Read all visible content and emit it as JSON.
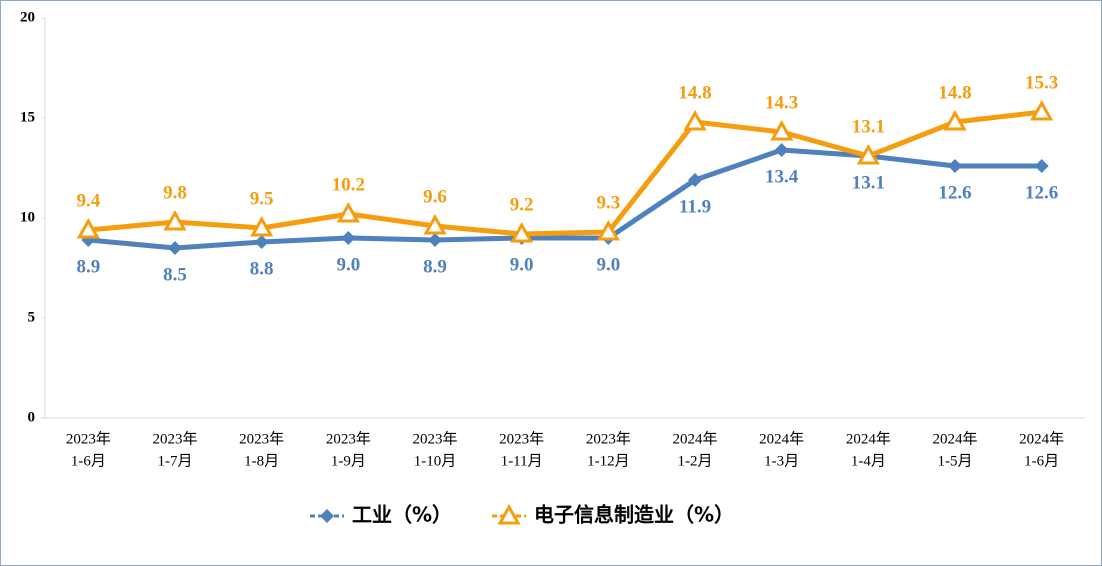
{
  "chart_data": {
    "type": "line",
    "categories": [
      [
        "2023年",
        "1-6月"
      ],
      [
        "2023年",
        "1-7月"
      ],
      [
        "2023年",
        "1-8月"
      ],
      [
        "2023年",
        "1-9月"
      ],
      [
        "2023年",
        "1-10月"
      ],
      [
        "2023年",
        "1-11月"
      ],
      [
        "2023年",
        "1-12月"
      ],
      [
        "2024年",
        "1-2月"
      ],
      [
        "2024年",
        "1-3月"
      ],
      [
        "2024年",
        "1-4月"
      ],
      [
        "2024年",
        "1-5月"
      ],
      [
        "2024年",
        "1-6月"
      ]
    ],
    "series": [
      {
        "name": "工业（%）",
        "color": "#4f81bd",
        "marker": "diamond",
        "label_position": "below",
        "values": [
          8.9,
          8.5,
          8.8,
          9.0,
          8.9,
          9.0,
          9.0,
          11.9,
          13.4,
          13.1,
          12.6,
          12.6
        ],
        "value_labels": [
          "8.9",
          "8.5",
          "8.8",
          "9.0",
          "8.9",
          "9.0",
          "9.0",
          "11.9",
          "13.4",
          "13.1",
          "12.6",
          "12.6"
        ]
      },
      {
        "name": "电子信息制造业（%）",
        "color": "#f59d0e",
        "marker": "triangle",
        "label_position": "above",
        "values": [
          9.4,
          9.8,
          9.5,
          10.2,
          9.6,
          9.2,
          9.3,
          14.8,
          14.3,
          13.1,
          14.8,
          15.3
        ]
      }
    ],
    "ylim": [
      0,
      20
    ],
    "yticks": [
      0,
      5,
      10,
      15,
      20
    ],
    "grid": false,
    "legend": "bottom"
  }
}
